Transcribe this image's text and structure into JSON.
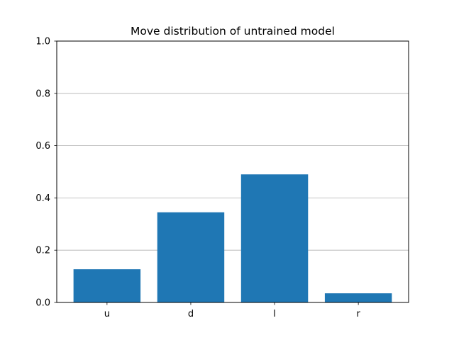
{
  "chart_data": {
    "type": "bar",
    "title": "Move distribution of untrained model",
    "xlabel": "",
    "ylabel": "",
    "categories": [
      "u",
      "d",
      "l",
      "r"
    ],
    "values": [
      0.127,
      0.345,
      0.49,
      0.035
    ],
    "ylim": [
      0,
      1.0
    ],
    "yticks": [
      "0.0",
      "0.2",
      "0.4",
      "0.6",
      "0.8",
      "1.0"
    ],
    "grid": {
      "axis": "y",
      "on": true
    },
    "colors": {
      "bar": "#1f77b4",
      "grid": "#b0b0b0",
      "axes": "#000000"
    }
  }
}
